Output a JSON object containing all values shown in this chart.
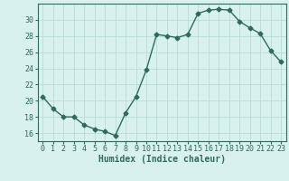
{
  "x": [
    0,
    1,
    2,
    3,
    4,
    5,
    6,
    7,
    8,
    9,
    10,
    11,
    12,
    13,
    14,
    15,
    16,
    17,
    18,
    19,
    20,
    21,
    22,
    23
  ],
  "y": [
    20.5,
    19.0,
    18.0,
    18.0,
    17.0,
    16.5,
    16.2,
    15.7,
    18.5,
    20.5,
    23.8,
    28.2,
    28.0,
    27.8,
    28.2,
    30.8,
    31.2,
    31.3,
    31.2,
    29.8,
    29.0,
    28.3,
    26.2,
    24.8
  ],
  "line_color": "#2d6b5e",
  "marker": "D",
  "markersize": 2.5,
  "linewidth": 1.0,
  "bg_color": "#d8f0ee",
  "grid_color": "#b8dcd8",
  "xlabel": "Humidex (Indice chaleur)",
  "xlabel_fontsize": 7,
  "tick_fontsize": 6,
  "ylim": [
    15,
    32
  ],
  "yticks": [
    16,
    18,
    20,
    22,
    24,
    26,
    28,
    30
  ],
  "xlim": [
    -0.5,
    23.5
  ],
  "xticks": [
    0,
    1,
    2,
    3,
    4,
    5,
    6,
    7,
    8,
    9,
    10,
    11,
    12,
    13,
    14,
    15,
    16,
    17,
    18,
    19,
    20,
    21,
    22,
    23
  ],
  "spine_color": "#2d6b5e"
}
